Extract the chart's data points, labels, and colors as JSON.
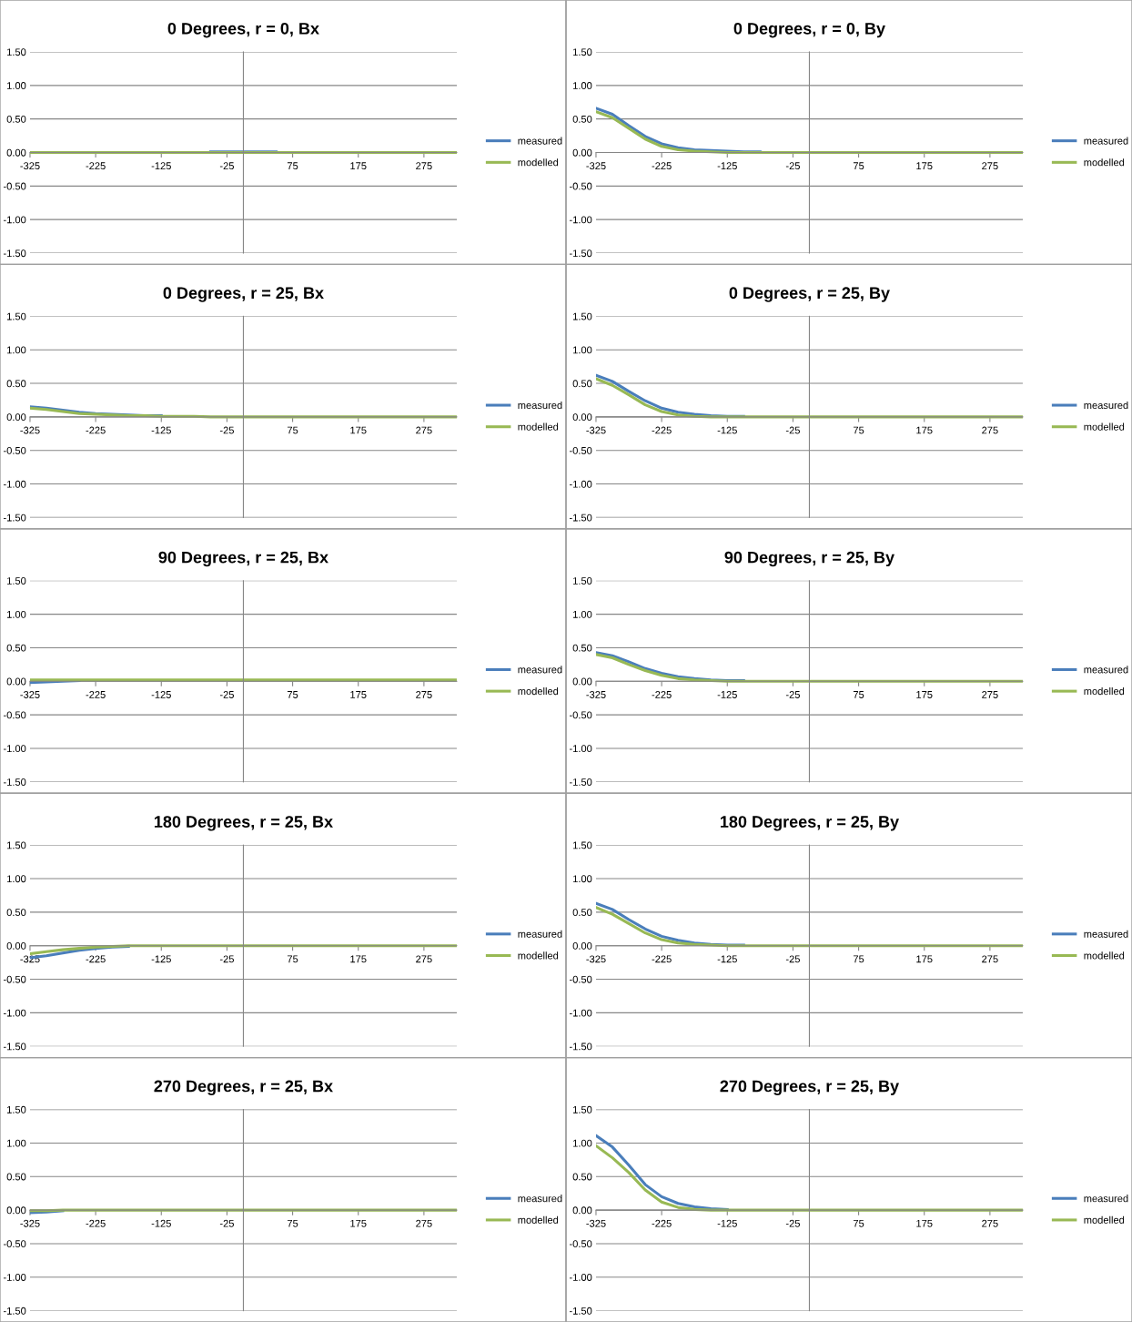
{
  "chart_data": [
    {
      "type": "line",
      "title": "0 Degrees, r = 0, Bx",
      "x": [
        -325,
        -300,
        -275,
        -250,
        -225,
        -200,
        -175,
        -150,
        -125,
        -100,
        -75,
        -50,
        -25,
        0,
        25,
        50,
        75,
        100,
        125,
        150,
        175,
        200,
        225,
        250,
        275,
        300,
        325
      ],
      "xlim": [
        -325,
        325
      ],
      "xticks": [
        -325,
        -225,
        -125,
        -25,
        75,
        175,
        275
      ],
      "ylim": [
        -1.5,
        1.5
      ],
      "yticks": [
        {
          "value": -1.5,
          "label": "-1.50"
        },
        {
          "value": -1.0,
          "label": "-1.00"
        },
        {
          "value": -0.5,
          "label": "-0.50"
        },
        {
          "value": 0,
          "label": "0.00"
        },
        {
          "value": 0.5,
          "label": "0.50"
        },
        {
          "value": 1.0,
          "label": "1.00"
        },
        {
          "value": 1.5,
          "label": "1.50"
        }
      ],
      "grid": "y",
      "legend": "right",
      "series": [
        {
          "name": "measured",
          "color": "#4a7ebb",
          "values": [
            null,
            null,
            null,
            null,
            null,
            null,
            null,
            null,
            null,
            null,
            null,
            0.01,
            0.01,
            0.01,
            0.01,
            0.01,
            null,
            null,
            null,
            null,
            null,
            null,
            null,
            null,
            null,
            null,
            null
          ]
        },
        {
          "name": "modelled",
          "color": "#98b954",
          "values": [
            0,
            0,
            0,
            0,
            0,
            0,
            0,
            0,
            0,
            0,
            0,
            0,
            0,
            0,
            0,
            0,
            0,
            0,
            0,
            0,
            0,
            0,
            0,
            0,
            0,
            0,
            0
          ]
        }
      ]
    },
    {
      "type": "line",
      "title": "0 Degrees, r = 0, By",
      "x": [
        -325,
        -300,
        -275,
        -250,
        -225,
        -200,
        -175,
        -150,
        -125,
        -100,
        -75,
        -50,
        -25,
        0,
        25,
        50,
        75,
        100,
        125,
        150,
        175,
        200,
        225,
        250,
        275,
        300,
        325
      ],
      "xlim": [
        -325,
        325
      ],
      "xticks": [
        -325,
        -225,
        -125,
        -25,
        75,
        175,
        275
      ],
      "ylim": [
        -1.5,
        1.5
      ],
      "yticks": [
        {
          "value": -1.5,
          "label": "-1.50"
        },
        {
          "value": -1.0,
          "label": "-1.00"
        },
        {
          "value": -0.5,
          "label": "-0.50"
        },
        {
          "value": 0,
          "label": "0.00"
        },
        {
          "value": 0.5,
          "label": "0.50"
        },
        {
          "value": 1.0,
          "label": "1.00"
        },
        {
          "value": 1.5,
          "label": "1.50"
        }
      ],
      "grid": "y",
      "legend": "right",
      "series": [
        {
          "name": "measured",
          "color": "#4a7ebb",
          "values": [
            0.66,
            0.57,
            0.4,
            0.24,
            0.13,
            0.07,
            0.04,
            0.03,
            0.02,
            0.01,
            0.01,
            null,
            null,
            null,
            null,
            null,
            null,
            null,
            null,
            null,
            null,
            null,
            null,
            null,
            null,
            null,
            null
          ]
        },
        {
          "name": "modelled",
          "color": "#98b954",
          "values": [
            0.61,
            0.52,
            0.36,
            0.2,
            0.09,
            0.04,
            0.02,
            0.01,
            0,
            0,
            0,
            0,
            0,
            0,
            0,
            0,
            0,
            0,
            0,
            0,
            0,
            0,
            0,
            0,
            0,
            0,
            0
          ]
        }
      ]
    },
    {
      "type": "line",
      "title": "0 Degrees, r = 25, Bx",
      "x": [
        -325,
        -300,
        -275,
        -250,
        -225,
        -200,
        -175,
        -150,
        -125,
        -100,
        -75,
        -50,
        -25,
        0,
        25,
        50,
        75,
        100,
        125,
        150,
        175,
        200,
        225,
        250,
        275,
        300,
        325
      ],
      "xlim": [
        -325,
        325
      ],
      "xticks": [
        -325,
        -225,
        -125,
        -25,
        75,
        175,
        275
      ],
      "ylim": [
        -1.5,
        1.5
      ],
      "yticks": [
        {
          "value": -1.5,
          "label": "-1.50"
        },
        {
          "value": -1.0,
          "label": "-1.00"
        },
        {
          "value": -0.5,
          "label": "-0.50"
        },
        {
          "value": 0,
          "label": "0.00"
        },
        {
          "value": 0.5,
          "label": "0.50"
        },
        {
          "value": 1.0,
          "label": "1.00"
        },
        {
          "value": 1.5,
          "label": "1.50"
        }
      ],
      "grid": "y",
      "legend": "right",
      "series": [
        {
          "name": "measured",
          "color": "#4a7ebb",
          "values": [
            0.15,
            0.13,
            0.1,
            0.07,
            0.05,
            0.04,
            0.03,
            0.02,
            0.02,
            null,
            null,
            null,
            null,
            null,
            null,
            null,
            null,
            null,
            null,
            null,
            null,
            null,
            null,
            null,
            null,
            null,
            null
          ]
        },
        {
          "name": "modelled",
          "color": "#98b954",
          "values": [
            0.13,
            0.11,
            0.08,
            0.05,
            0.04,
            0.03,
            0.02,
            0.02,
            0.01,
            0.01,
            0.01,
            0,
            0,
            0,
            0,
            0,
            0,
            0,
            0,
            0,
            0,
            0,
            0,
            0,
            0,
            0,
            0
          ]
        }
      ]
    },
    {
      "type": "line",
      "title": "0 Degrees, r = 25, By",
      "x": [
        -325,
        -300,
        -275,
        -250,
        -225,
        -200,
        -175,
        -150,
        -125,
        -100,
        -75,
        -50,
        -25,
        0,
        25,
        50,
        75,
        100,
        125,
        150,
        175,
        200,
        225,
        250,
        275,
        300,
        325
      ],
      "xlim": [
        -325,
        325
      ],
      "xticks": [
        -325,
        -225,
        -125,
        -25,
        75,
        175,
        275
      ],
      "ylim": [
        -1.5,
        1.5
      ],
      "yticks": [
        {
          "value": -1.5,
          "label": "-1.50"
        },
        {
          "value": -1.0,
          "label": "-1.00"
        },
        {
          "value": -0.5,
          "label": "-0.50"
        },
        {
          "value": 0,
          "label": "0.00"
        },
        {
          "value": 0.5,
          "label": "0.50"
        },
        {
          "value": 1.0,
          "label": "1.00"
        },
        {
          "value": 1.5,
          "label": "1.50"
        }
      ],
      "grid": "y",
      "legend": "right",
      "series": [
        {
          "name": "measured",
          "color": "#4a7ebb",
          "values": [
            0.62,
            0.53,
            0.38,
            0.24,
            0.13,
            0.07,
            0.04,
            0.02,
            0.01,
            0.01,
            null,
            null,
            null,
            null,
            null,
            null,
            null,
            null,
            null,
            null,
            null,
            null,
            null,
            null,
            null,
            null,
            null
          ]
        },
        {
          "name": "modelled",
          "color": "#98b954",
          "values": [
            0.57,
            0.47,
            0.33,
            0.18,
            0.08,
            0.03,
            0.01,
            0,
            0,
            0,
            0,
            0,
            0,
            0,
            0,
            0,
            0,
            0,
            0,
            0,
            0,
            0,
            0,
            0,
            0,
            0,
            0
          ]
        }
      ]
    },
    {
      "type": "line",
      "title": "90 Degrees, r = 25, Bx",
      "x": [
        -325,
        -300,
        -275,
        -250,
        -225,
        -200,
        -175,
        -150,
        -125,
        -100,
        -75,
        -50,
        -25,
        0,
        25,
        50,
        75,
        100,
        125,
        150,
        175,
        200,
        225,
        250,
        275,
        300,
        325
      ],
      "xlim": [
        -325,
        325
      ],
      "xticks": [
        -325,
        -225,
        -125,
        -25,
        75,
        175,
        275
      ],
      "ylim": [
        -1.5,
        1.5
      ],
      "yticks": [
        {
          "value": -1.5,
          "label": "-1.50"
        },
        {
          "value": -1.0,
          "label": "-1.00"
        },
        {
          "value": -0.5,
          "label": "-0.50"
        },
        {
          "value": 0,
          "label": "0.00"
        },
        {
          "value": 0.5,
          "label": "0.50"
        },
        {
          "value": 1.0,
          "label": "1.00"
        },
        {
          "value": 1.5,
          "label": "1.50"
        }
      ],
      "grid": "y",
      "legend": "right",
      "series": [
        {
          "name": "measured",
          "color": "#4a7ebb",
          "values": [
            -0.02,
            -0.01,
            0,
            0.01,
            null,
            null,
            null,
            null,
            null,
            null,
            null,
            null,
            null,
            null,
            null,
            null,
            null,
            null,
            null,
            null,
            null,
            null,
            null,
            null,
            null,
            null,
            null
          ]
        },
        {
          "name": "modelled",
          "color": "#98b954",
          "values": [
            0.02,
            0.02,
            0.02,
            0.02,
            0.02,
            0.02,
            0.02,
            0.02,
            0.02,
            0.02,
            0.02,
            0.02,
            0.02,
            0.02,
            0.02,
            0.02,
            0.02,
            0.02,
            0.02,
            0.02,
            0.02,
            0.02,
            0.02,
            0.02,
            0.02,
            0.02,
            0.02
          ]
        }
      ]
    },
    {
      "type": "line",
      "title": "90 Degrees, r = 25, By",
      "x": [
        -325,
        -300,
        -275,
        -250,
        -225,
        -200,
        -175,
        -150,
        -125,
        -100,
        -75,
        -50,
        -25,
        0,
        25,
        50,
        75,
        100,
        125,
        150,
        175,
        200,
        225,
        250,
        275,
        300,
        325
      ],
      "xlim": [
        -325,
        325
      ],
      "xticks": [
        -325,
        -225,
        -125,
        -25,
        75,
        175,
        275
      ],
      "ylim": [
        -1.5,
        1.5
      ],
      "yticks": [
        {
          "value": -1.5,
          "label": "-1.50"
        },
        {
          "value": -1.0,
          "label": "-1.00"
        },
        {
          "value": -0.5,
          "label": "-0.50"
        },
        {
          "value": 0,
          "label": "0.00"
        },
        {
          "value": 0.5,
          "label": "0.50"
        },
        {
          "value": 1.0,
          "label": "1.00"
        },
        {
          "value": 1.5,
          "label": "1.50"
        }
      ],
      "grid": "y",
      "legend": "right",
      "series": [
        {
          "name": "measured",
          "color": "#4a7ebb",
          "values": [
            0.43,
            0.38,
            0.29,
            0.19,
            0.12,
            0.07,
            0.04,
            0.02,
            0.01,
            0.01,
            null,
            null,
            null,
            null,
            null,
            null,
            null,
            null,
            null,
            null,
            null,
            null,
            null,
            null,
            null,
            null,
            null
          ]
        },
        {
          "name": "modelled",
          "color": "#98b954",
          "values": [
            0.4,
            0.35,
            0.25,
            0.16,
            0.09,
            0.04,
            0.02,
            0.01,
            0,
            0,
            0,
            0,
            0,
            0,
            0,
            0,
            0,
            0,
            0,
            0,
            0,
            0,
            0,
            0,
            0,
            0,
            0
          ]
        }
      ]
    },
    {
      "type": "line",
      "title": "180 Degrees, r = 25, Bx",
      "x": [
        -325,
        -300,
        -275,
        -250,
        -225,
        -200,
        -175,
        -150,
        -125,
        -100,
        -75,
        -50,
        -25,
        0,
        25,
        50,
        75,
        100,
        125,
        150,
        175,
        200,
        225,
        250,
        275,
        300,
        325
      ],
      "xlim": [
        -325,
        325
      ],
      "xticks": [
        -325,
        -225,
        -125,
        -25,
        75,
        175,
        275
      ],
      "ylim": [
        -1.5,
        1.5
      ],
      "yticks": [
        {
          "value": -1.5,
          "label": "-1.50"
        },
        {
          "value": -1.0,
          "label": "-1.00"
        },
        {
          "value": -0.5,
          "label": "-0.50"
        },
        {
          "value": 0,
          "label": "0.00"
        },
        {
          "value": 0.5,
          "label": "0.50"
        },
        {
          "value": 1.0,
          "label": "1.00"
        },
        {
          "value": 1.5,
          "label": "1.50"
        }
      ],
      "grid": "y",
      "legend": "right",
      "series": [
        {
          "name": "measured",
          "color": "#4a7ebb",
          "values": [
            -0.18,
            -0.15,
            -0.11,
            -0.07,
            -0.04,
            -0.02,
            -0.01,
            null,
            null,
            null,
            null,
            null,
            null,
            null,
            null,
            null,
            null,
            null,
            null,
            null,
            null,
            null,
            null,
            null,
            null,
            null,
            null
          ]
        },
        {
          "name": "modelled",
          "color": "#98b954",
          "values": [
            -0.12,
            -0.09,
            -0.06,
            -0.04,
            -0.02,
            -0.01,
            0,
            0,
            0,
            0,
            0,
            0,
            0,
            0,
            0,
            0,
            0,
            0,
            0,
            0,
            0,
            0,
            0,
            0,
            0,
            0,
            0
          ]
        }
      ]
    },
    {
      "type": "line",
      "title": "180 Degrees, r = 25, By",
      "x": [
        -325,
        -300,
        -275,
        -250,
        -225,
        -200,
        -175,
        -150,
        -125,
        -100,
        -75,
        -50,
        -25,
        0,
        25,
        50,
        75,
        100,
        125,
        150,
        175,
        200,
        225,
        250,
        275,
        300,
        325
      ],
      "xlim": [
        -325,
        325
      ],
      "xticks": [
        -325,
        -225,
        -125,
        -25,
        75,
        175,
        275
      ],
      "ylim": [
        -1.5,
        1.5
      ],
      "yticks": [
        {
          "value": -1.5,
          "label": "-1.50"
        },
        {
          "value": -1.0,
          "label": "-1.00"
        },
        {
          "value": -0.5,
          "label": "-0.50"
        },
        {
          "value": 0,
          "label": "0.00"
        },
        {
          "value": 0.5,
          "label": "0.50"
        },
        {
          "value": 1.0,
          "label": "1.00"
        },
        {
          "value": 1.5,
          "label": "1.50"
        }
      ],
      "grid": "y",
      "legend": "right",
      "series": [
        {
          "name": "measured",
          "color": "#4a7ebb",
          "values": [
            0.63,
            0.54,
            0.39,
            0.25,
            0.14,
            0.08,
            0.04,
            0.02,
            0.01,
            0.01,
            null,
            null,
            null,
            null,
            null,
            null,
            null,
            null,
            null,
            null,
            null,
            null,
            null,
            null,
            null,
            null,
            null
          ]
        },
        {
          "name": "modelled",
          "color": "#98b954",
          "values": [
            0.57,
            0.47,
            0.33,
            0.19,
            0.09,
            0.04,
            0.02,
            0.01,
            0,
            0,
            0,
            0,
            0,
            0,
            0,
            0,
            0,
            0,
            0,
            0,
            0,
            0,
            0,
            0,
            0,
            0,
            0
          ]
        }
      ]
    },
    {
      "type": "line",
      "title": "270 Degrees, r = 25, Bx",
      "x": [
        -325,
        -300,
        -275,
        -250,
        -225,
        -200,
        -175,
        -150,
        -125,
        -100,
        -75,
        -50,
        -25,
        0,
        25,
        50,
        75,
        100,
        125,
        150,
        175,
        200,
        225,
        250,
        275,
        300,
        325
      ],
      "xlim": [
        -325,
        325
      ],
      "xticks": [
        -325,
        -225,
        -125,
        -25,
        75,
        175,
        275
      ],
      "ylim": [
        -1.5,
        1.5
      ],
      "yticks": [
        {
          "value": -1.5,
          "label": "-1.50"
        },
        {
          "value": -1.0,
          "label": "-1.00"
        },
        {
          "value": -0.5,
          "label": "-0.50"
        },
        {
          "value": 0,
          "label": "0.00"
        },
        {
          "value": 0.5,
          "label": "0.50"
        },
        {
          "value": 1.0,
          "label": "1.00"
        },
        {
          "value": 1.5,
          "label": "1.50"
        }
      ],
      "grid": "y",
      "legend": "right",
      "series": [
        {
          "name": "measured",
          "color": "#4a7ebb",
          "values": [
            -0.04,
            -0.03,
            -0.01,
            null,
            null,
            null,
            null,
            null,
            null,
            null,
            null,
            null,
            null,
            null,
            null,
            null,
            null,
            null,
            null,
            null,
            null,
            null,
            null,
            null,
            null,
            null,
            null
          ]
        },
        {
          "name": "modelled",
          "color": "#98b954",
          "values": [
            -0.01,
            -0.01,
            0,
            0,
            0,
            0,
            0,
            0,
            0,
            0,
            0,
            0,
            0,
            0,
            0,
            0,
            0,
            0,
            0,
            0,
            0,
            0,
            0,
            0,
            0,
            0,
            0
          ]
        }
      ]
    },
    {
      "type": "line",
      "title": "270 Degrees, r = 25, By",
      "x": [
        -325,
        -300,
        -275,
        -250,
        -225,
        -200,
        -175,
        -150,
        -125,
        -100,
        -75,
        -50,
        -25,
        0,
        25,
        50,
        75,
        100,
        125,
        150,
        175,
        200,
        225,
        250,
        275,
        300,
        325
      ],
      "xlim": [
        -325,
        325
      ],
      "xticks": [
        -325,
        -225,
        -125,
        -25,
        75,
        175,
        275
      ],
      "ylim": [
        -1.5,
        1.5
      ],
      "yticks": [
        {
          "value": -1.5,
          "label": "-1.50"
        },
        {
          "value": -1.0,
          "label": "-1.00"
        },
        {
          "value": -0.5,
          "label": "-0.50"
        },
        {
          "value": 0,
          "label": "0.00"
        },
        {
          "value": 0.5,
          "label": "0.50"
        },
        {
          "value": 1.0,
          "label": "1.00"
        },
        {
          "value": 1.5,
          "label": "1.50"
        }
      ],
      "grid": "y",
      "legend": "right",
      "series": [
        {
          "name": "measured",
          "color": "#4a7ebb",
          "values": [
            1.11,
            0.94,
            0.67,
            0.38,
            0.2,
            0.1,
            0.05,
            0.02,
            0.01,
            null,
            null,
            null,
            null,
            null,
            null,
            null,
            null,
            null,
            null,
            null,
            null,
            null,
            null,
            null,
            null,
            null,
            null
          ]
        },
        {
          "name": "modelled",
          "color": "#98b954",
          "values": [
            0.96,
            0.78,
            0.56,
            0.3,
            0.12,
            0.04,
            0.01,
            0,
            0,
            0,
            0,
            0,
            0,
            0,
            0,
            0,
            0,
            0,
            0,
            0,
            0,
            0,
            0,
            0,
            0,
            0,
            0
          ]
        }
      ]
    }
  ]
}
